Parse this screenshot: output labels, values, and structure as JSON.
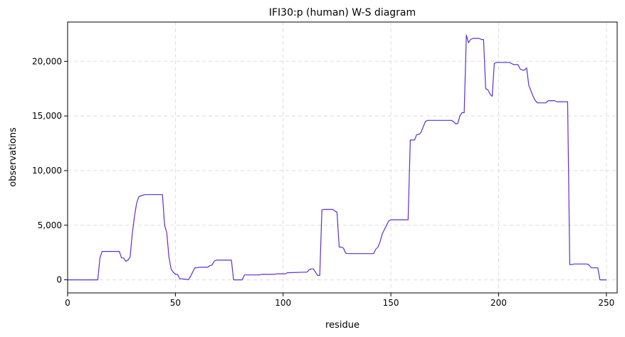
{
  "chart_data": {
    "type": "line",
    "title": "IFI30:p (human) W-S diagram",
    "xlabel": "residue",
    "ylabel": "observations",
    "xlim": [
      0,
      255
    ],
    "ylim": [
      -1200,
      23600
    ],
    "xticks": [
      0,
      50,
      100,
      150,
      200,
      250
    ],
    "xtick_labels": [
      "0",
      "50",
      "100",
      "150",
      "200",
      "250"
    ],
    "yticks": [
      0,
      5000,
      10000,
      15000,
      20000
    ],
    "ytick_labels": [
      "0",
      "5,000",
      "10,000",
      "15,000",
      "20,000"
    ],
    "grid": true,
    "line_color": "#5b2fd4",
    "series": [
      {
        "x": [
          0,
          14,
          15,
          16,
          24,
          25,
          26,
          27,
          28,
          29,
          30,
          31,
          32,
          33,
          34,
          35,
          36,
          40,
          44,
          45,
          46,
          47,
          48,
          49,
          50,
          51,
          52,
          55,
          56,
          57,
          58,
          59,
          60,
          61,
          65,
          66,
          67,
          68,
          69,
          70,
          71,
          76,
          77,
          78,
          81,
          82,
          83,
          89,
          90,
          96,
          97,
          101,
          102,
          110,
          111,
          112,
          113,
          114,
          116,
          117,
          118,
          119,
          123,
          124,
          125,
          126,
          127,
          128,
          129,
          130,
          141,
          142,
          143,
          144,
          145,
          146,
          147,
          148,
          149,
          150,
          157,
          158,
          159,
          160,
          161,
          162,
          163,
          164,
          165,
          166,
          167,
          175,
          176,
          177,
          178,
          179,
          180,
          181,
          182,
          183,
          184,
          185,
          186,
          187,
          188,
          189,
          190,
          191,
          192,
          193,
          194,
          195,
          196,
          197,
          198,
          199,
          200,
          201,
          202,
          203,
          204,
          205,
          206,
          207,
          208,
          209,
          210,
          211,
          212,
          213,
          214,
          215,
          216,
          217,
          218,
          219,
          220,
          221,
          222,
          223,
          224,
          225,
          226,
          227,
          228,
          229,
          230,
          231,
          232,
          233,
          234,
          235,
          236,
          237,
          238,
          239,
          240,
          241,
          242,
          243,
          244,
          245,
          246,
          247,
          248,
          249,
          250
        ],
        "y": [
          0,
          0,
          2000,
          2600,
          2600,
          2000,
          2000,
          1700,
          1800,
          2100,
          4200,
          5800,
          7000,
          7600,
          7700,
          7750,
          7800,
          7800,
          7800,
          5000,
          4300,
          2100,
          1000,
          700,
          500,
          500,
          100,
          50,
          0,
          300,
          700,
          1100,
          1100,
          1150,
          1150,
          1300,
          1350,
          1700,
          1800,
          1800,
          1800,
          1800,
          0,
          0,
          0,
          450,
          450,
          450,
          500,
          500,
          550,
          550,
          650,
          700,
          700,
          900,
          1000,
          1000,
          400,
          400,
          6400,
          6450,
          6450,
          6300,
          6200,
          3000,
          3000,
          2900,
          2450,
          2400,
          2400,
          2400,
          2800,
          3000,
          3500,
          4200,
          4600,
          5000,
          5400,
          5500,
          5500,
          5500,
          12800,
          12800,
          12800,
          13300,
          13300,
          13500,
          14000,
          14500,
          14600,
          14600,
          14600,
          14600,
          14600,
          14500,
          14300,
          14300,
          15000,
          15300,
          15300,
          22400,
          21700,
          22000,
          22100,
          22100,
          22100,
          22100,
          22000,
          22000,
          17500,
          17400,
          17000,
          16800,
          19800,
          19900,
          19900,
          19900,
          19900,
          19900,
          19900,
          19900,
          19800,
          19700,
          19700,
          19700,
          19300,
          19200,
          19200,
          19400,
          17800,
          17300,
          16800,
          16400,
          16200,
          16200,
          16200,
          16200,
          16200,
          16400,
          16400,
          16400,
          16400,
          16300,
          16300,
          16300,
          16300,
          16300,
          16300,
          1400,
          1400,
          1450,
          1450,
          1450,
          1450,
          1450,
          1450,
          1450,
          1350,
          1100,
          1100,
          1100,
          1100,
          0,
          0,
          0,
          0
        ]
      }
    ]
  }
}
